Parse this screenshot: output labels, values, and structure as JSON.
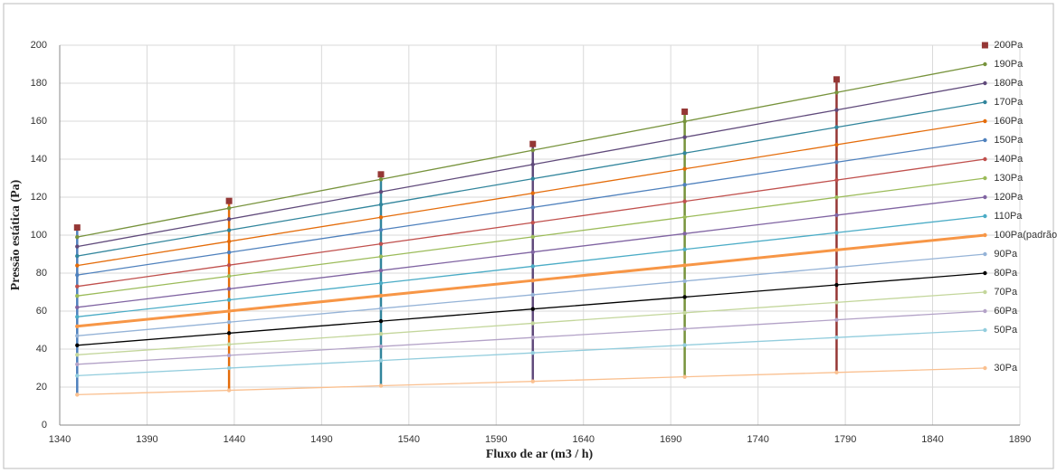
{
  "chart_data": {
    "type": "line",
    "x_label": "Fluxo de ar (m3 / h)",
    "y_label": "Pressão estática (Pa)",
    "x": [
      1350,
      1437,
      1524,
      1611,
      1698,
      1785,
      1870
    ],
    "xlim": [
      1340,
      1890
    ],
    "xticks": [
      1340,
      1390,
      1440,
      1490,
      1540,
      1590,
      1640,
      1690,
      1740,
      1790,
      1840,
      1890
    ],
    "ylim": [
      0,
      200
    ],
    "yticks": [
      0,
      20,
      40,
      60,
      80,
      100,
      120,
      140,
      160,
      180,
      200
    ],
    "grid": true,
    "range_colors": [
      "#4f81bd",
      "#e46c0a",
      "#31859c",
      "#604a7b",
      "#77933c",
      "#953735"
    ],
    "series": [
      {
        "name": "200Pa",
        "color": "#953735",
        "show_line": false,
        "values": [
          104,
          118,
          132,
          148,
          165,
          182,
          200
        ]
      },
      {
        "name": "190Pa",
        "color": "#77933c",
        "values": [
          99,
          114.2,
          129.4,
          144.7,
          159.9,
          175.1,
          190
        ]
      },
      {
        "name": "180Pa",
        "color": "#604a7b",
        "values": [
          94,
          108.4,
          122.8,
          137.2,
          151.6,
          165.9,
          180
        ]
      },
      {
        "name": "170Pa",
        "color": "#31859c",
        "values": [
          89,
          102.6,
          116.1,
          129.7,
          143.2,
          156.8,
          170
        ]
      },
      {
        "name": "160Pa",
        "color": "#e46c0a",
        "values": [
          84,
          96.7,
          109.4,
          122.1,
          134.9,
          147.6,
          160
        ]
      },
      {
        "name": "150Pa",
        "color": "#4f81bd",
        "values": [
          79,
          90.9,
          102.8,
          114.6,
          126.5,
          138.4,
          150
        ]
      },
      {
        "name": "140Pa",
        "color": "#c0504d",
        "values": [
          73,
          84.2,
          95.4,
          106.6,
          117.8,
          129,
          140
        ]
      },
      {
        "name": "130Pa",
        "color": "#9bbb59",
        "values": [
          68,
          78.4,
          88.7,
          99.1,
          109.5,
          119.9,
          130
        ]
      },
      {
        "name": "120Pa",
        "color": "#8064a2",
        "values": [
          62,
          71.7,
          81.4,
          91.1,
          100.8,
          110.5,
          120
        ]
      },
      {
        "name": "110Pa",
        "color": "#4bacc6",
        "values": [
          57,
          65.9,
          74.7,
          83.6,
          92.5,
          101.3,
          110
        ]
      },
      {
        "name": "100Pa(padrão)",
        "color": "#f79646",
        "width": 3,
        "values": [
          52,
          60,
          68.1,
          76.1,
          84.1,
          92.2,
          100
        ]
      },
      {
        "name": "90Pa",
        "color": "#95b3d7",
        "values": [
          47,
          54.2,
          61.4,
          68.6,
          75.8,
          83,
          90
        ]
      },
      {
        "name": "80Pa",
        "color": "#000000",
        "values": [
          42,
          48.4,
          54.7,
          61.1,
          67.4,
          73.8,
          80
        ]
      },
      {
        "name": "70Pa",
        "color": "#c3d69b",
        "values": [
          37,
          42.5,
          48,
          53.6,
          59.1,
          64.6,
          70
        ]
      },
      {
        "name": "60Pa",
        "color": "#b3a2c7",
        "values": [
          32,
          36.7,
          41.4,
          46.1,
          50.7,
          55.4,
          60
        ]
      },
      {
        "name": "50Pa",
        "color": "#93cddd",
        "values": [
          26,
          30,
          34,
          38,
          42.1,
          46.1,
          50
        ]
      },
      {
        "name": "30Pa",
        "color": "#fac090",
        "values": [
          16,
          18.3,
          20.7,
          23,
          25.4,
          27.7,
          30
        ]
      }
    ]
  }
}
